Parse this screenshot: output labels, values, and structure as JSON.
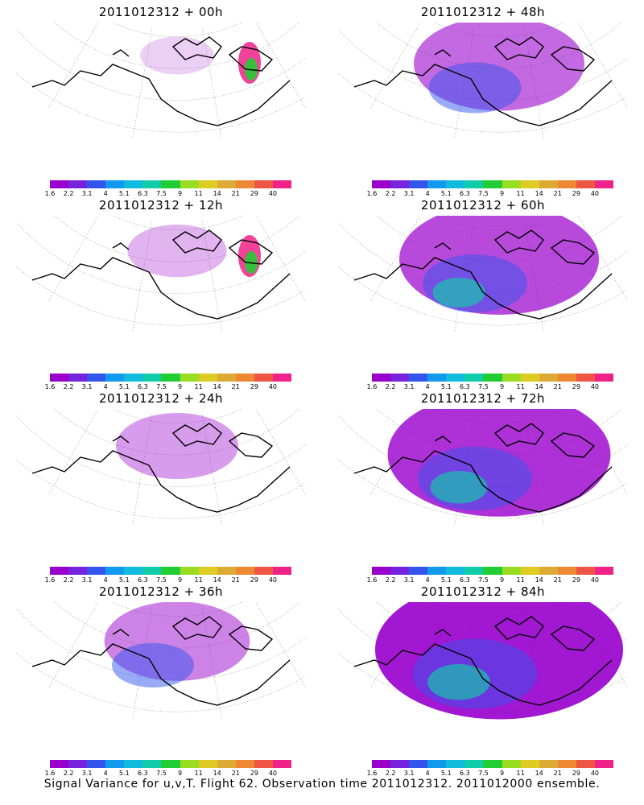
{
  "panels": [
    {
      "title": "2011012312 + 00h",
      "level": 0.05,
      "hotspot": true
    },
    {
      "title": "2011012312 + 48h",
      "level": 0.55,
      "hotspot": false
    },
    {
      "title": "2011012312 + 12h",
      "level": 0.18,
      "hotspot": true
    },
    {
      "title": "2011012312 + 60h",
      "level": 0.7,
      "hotspot": false
    },
    {
      "title": "2011012312 + 24h",
      "level": 0.3,
      "hotspot": false
    },
    {
      "title": "2011012312 + 72h",
      "level": 0.82,
      "hotspot": false
    },
    {
      "title": "2011012312 + 36h",
      "level": 0.42,
      "hotspot": false
    },
    {
      "title": "2011012312 + 84h",
      "level": 0.95,
      "hotspot": false
    }
  ],
  "colorbar": {
    "labels": [
      "1.6",
      "2.2",
      "3.1",
      "4",
      "5.1",
      "6.3",
      "7.5",
      "9",
      "11",
      "14",
      "21",
      "29",
      "40"
    ],
    "colors": [
      "#9900cc",
      "#7722dd",
      "#3355ee",
      "#1199ee",
      "#11bbdd",
      "#11ccaa",
      "#22cc33",
      "#99dd22",
      "#ddcc22",
      "#ddaa33",
      "#ee8833",
      "#ee5544",
      "#ee2288"
    ]
  },
  "footer": "Signal Variance for u,v,T. Flight 62. Observation time 2011012312. 2011012000 ensemble."
}
